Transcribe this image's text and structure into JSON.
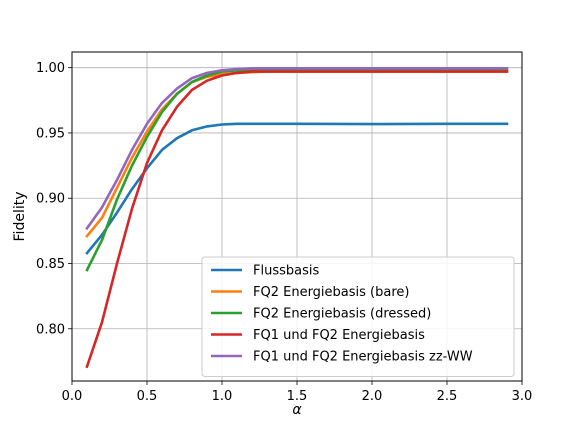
{
  "chart_data": {
    "type": "line",
    "xlabel": "α",
    "ylabel": "Fidelity",
    "xlim": [
      0.0,
      3.0
    ],
    "ylim": [
      0.76,
      1.012
    ],
    "xticks": [
      "0.0",
      "0.5",
      "1.0",
      "1.5",
      "2.0",
      "2.5",
      "3.0"
    ],
    "yticks": [
      "0.80",
      "0.85",
      "0.90",
      "0.95",
      "1.00"
    ],
    "grid": true,
    "legend_position": "lower-right",
    "series": [
      {
        "name": "Flussbasis",
        "color": "#1f77b4",
        "x": [
          0.1,
          0.2,
          0.3,
          0.4,
          0.5,
          0.6,
          0.7,
          0.8,
          0.9,
          1.0,
          1.1,
          1.2,
          1.3,
          1.5,
          2.0,
          2.5,
          2.9
        ],
        "y": [
          0.858,
          0.872,
          0.889,
          0.907,
          0.923,
          0.937,
          0.946,
          0.952,
          0.955,
          0.9565,
          0.957,
          0.957,
          0.957,
          0.957,
          0.9568,
          0.957,
          0.957
        ]
      },
      {
        "name": "FQ2 Energiebasis (bare)",
        "color": "#ff7f0e",
        "x": [
          0.1,
          0.2,
          0.3,
          0.4,
          0.5,
          0.6,
          0.7,
          0.8,
          0.9,
          1.0,
          1.1,
          1.2,
          1.3,
          1.5,
          2.0,
          2.5,
          2.9
        ],
        "y": [
          0.871,
          0.885,
          0.908,
          0.931,
          0.951,
          0.968,
          0.98,
          0.989,
          0.993,
          0.995,
          0.996,
          0.9965,
          0.997,
          0.997,
          0.997,
          0.997,
          0.997
        ]
      },
      {
        "name": "FQ2 Energiebasis (dressed)",
        "color": "#2ca02c",
        "x": [
          0.1,
          0.2,
          0.3,
          0.4,
          0.5,
          0.6,
          0.7,
          0.8,
          0.9,
          1.0,
          1.1,
          1.2,
          1.3,
          1.5,
          2.0,
          2.5,
          2.9
        ],
        "y": [
          0.845,
          0.868,
          0.899,
          0.925,
          0.947,
          0.966,
          0.98,
          0.989,
          0.994,
          0.997,
          0.998,
          0.998,
          0.998,
          0.998,
          0.998,
          0.998,
          0.998
        ]
      },
      {
        "name": "FQ1 und FQ2 Energiebasis",
        "color": "#d62728",
        "x": [
          0.1,
          0.2,
          0.3,
          0.4,
          0.5,
          0.6,
          0.7,
          0.8,
          0.9,
          1.0,
          1.1,
          1.2,
          1.3,
          1.5,
          2.0,
          2.5,
          2.9
        ],
        "y": [
          0.771,
          0.805,
          0.85,
          0.892,
          0.927,
          0.952,
          0.97,
          0.983,
          0.99,
          0.994,
          0.996,
          0.997,
          0.997,
          0.997,
          0.997,
          0.997,
          0.997
        ]
      },
      {
        "name": "FQ1 und FQ2 Energiebasis zz-WW",
        "color": "#9467bd",
        "x": [
          0.1,
          0.2,
          0.3,
          0.4,
          0.5,
          0.6,
          0.7,
          0.8,
          0.9,
          1.0,
          1.1,
          1.2,
          1.3,
          1.5,
          2.0,
          2.5,
          2.9
        ],
        "y": [
          0.877,
          0.893,
          0.914,
          0.937,
          0.957,
          0.973,
          0.984,
          0.992,
          0.996,
          0.998,
          0.999,
          0.9995,
          0.9995,
          0.9995,
          0.9995,
          0.9995,
          0.9995
        ]
      }
    ]
  }
}
